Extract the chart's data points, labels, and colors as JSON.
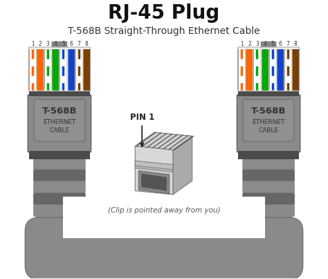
{
  "title": "RJ-45 Plug",
  "subtitle": "T-568B Straight-Through Ethernet Cable",
  "title_fontsize": 20,
  "subtitle_fontsize": 10,
  "bg_color": "#ffffff",
  "connector_body_color": "#8a8a8a",
  "connector_dark": "#4a4a4a",
  "connector_mid": "#666666",
  "connector_light": "#c0c0c0",
  "head_bg": "#d8d8d8",
  "label_bg": "#909090",
  "cable_color": "#8a8a8a",
  "wire_colors": [
    "#ffffff",
    "#ff6600",
    "#ffffff",
    "#00aa00",
    "#ffffff",
    "#1144cc",
    "#ffffff",
    "#7B3F00"
  ],
  "wire_stripes": [
    true,
    false,
    true,
    false,
    true,
    false,
    true,
    false
  ],
  "stripe_colors": [
    "#ff6600",
    null,
    "#00aa00",
    null,
    "#1144cc",
    null,
    "#7B3F00",
    null
  ],
  "pin_labels": [
    "1",
    "2",
    "3",
    "4",
    "5",
    "6",
    "7",
    "8"
  ],
  "label_line1": "T-568B",
  "label_line2": "ETHERNET",
  "label_line3": "CABLE",
  "pin1_text": "PIN 1",
  "clip_text": "(Clip is pointed away from you)"
}
